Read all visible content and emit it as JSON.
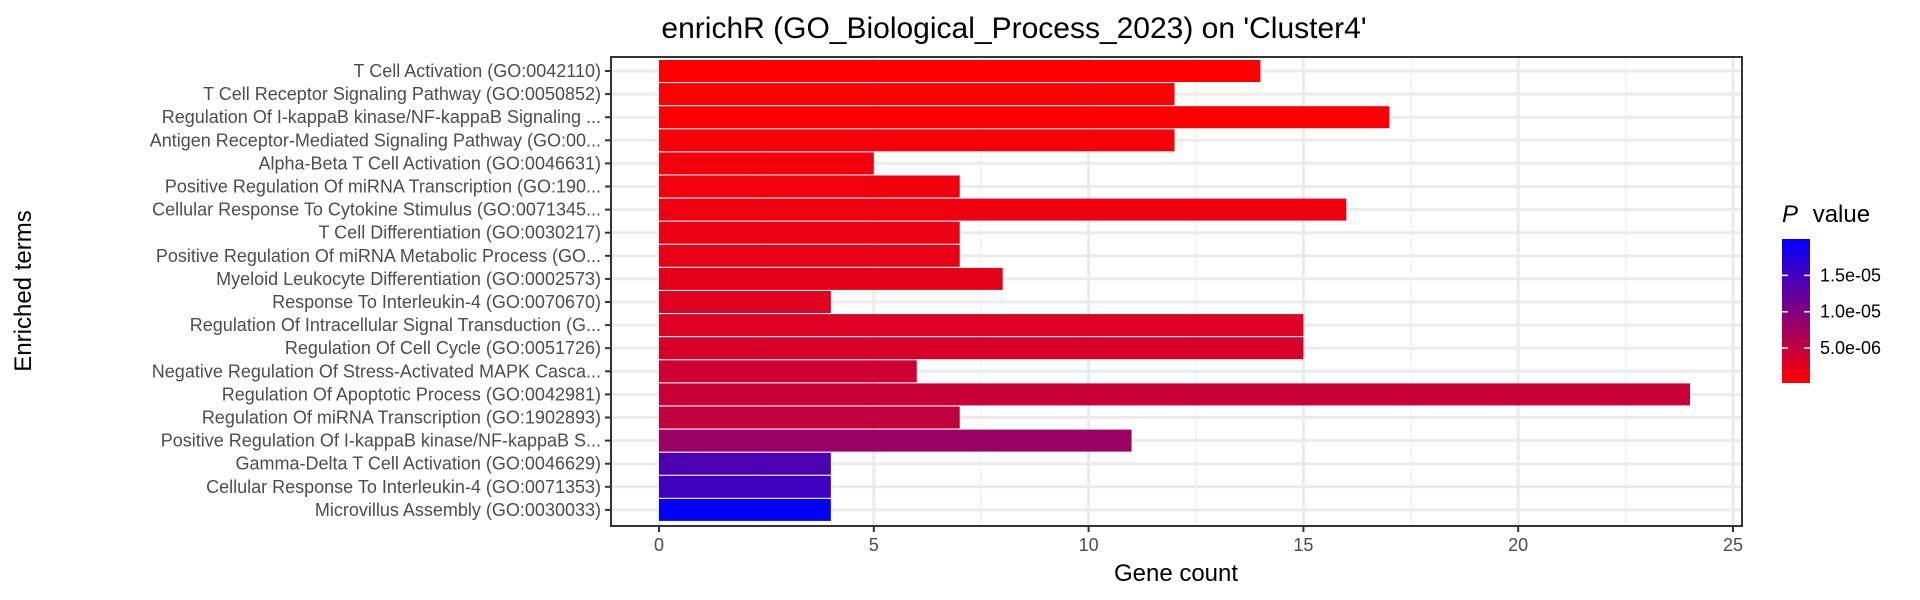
{
  "chart_data": {
    "type": "bar",
    "orientation": "horizontal",
    "title": "enrichR (GO_Biological_Process_2023) on 'Cluster4'",
    "xlabel": "Gene count",
    "ylabel": "Enriched terms",
    "xlim": [
      0,
      25
    ],
    "x_ticks": [
      0,
      5,
      10,
      15,
      20,
      25
    ],
    "grid": true,
    "categories": [
      "T Cell Activation (GO:0042110)",
      "T Cell Receptor Signaling Pathway (GO:0050852)",
      "Regulation Of I-kappaB kinase/NF-kappaB Signaling ...",
      "Antigen Receptor-Mediated Signaling Pathway (GO:00...",
      "Alpha-Beta T Cell Activation (GO:0046631)",
      "Positive Regulation Of miRNA Transcription (GO:190...",
      "Cellular Response To Cytokine Stimulus (GO:0071345...",
      "T Cell Differentiation (GO:0030217)",
      "Positive Regulation Of miRNA Metabolic Process (GO...",
      "Myeloid Leukocyte Differentiation (GO:0002573)",
      "Response To Interleukin-4 (GO:0070670)",
      "Regulation Of Intracellular Signal Transduction (G...",
      "Regulation Of Cell Cycle (GO:0051726)",
      "Negative Regulation Of Stress-Activated MAPK Casca...",
      "Regulation Of Apoptotic Process (GO:0042981)",
      "Regulation Of miRNA Transcription (GO:1902893)",
      "Positive Regulation Of I-kappaB kinase/NF-kappaB S...",
      "Gamma-Delta T Cell Activation (GO:0046629)",
      "Cellular Response To Interleukin-4 (GO:0071353)",
      "Microvillus Assembly (GO:0030033)"
    ],
    "values": [
      14,
      12,
      17,
      12,
      5,
      7,
      16,
      7,
      7,
      8,
      4,
      15,
      15,
      6,
      24,
      7,
      11,
      4,
      4,
      4
    ],
    "p_values": [
      2e-07,
      4e-07,
      6e-07,
      8e-07,
      1.1e-06,
      1.3e-06,
      1.5e-06,
      1.7e-06,
      1.9e-06,
      2.2e-06,
      2.6e-06,
      3e-06,
      3.3e-06,
      4e-06,
      4.5e-06,
      5e-06,
      8e-06,
      1.4e-05,
      1.5e-05,
      2e-05
    ],
    "legend": {
      "title_italic": "P",
      "title_rest": "value",
      "placement": "right",
      "tick_values": [
        5e-06,
        1e-05,
        1.5e-05
      ],
      "tick_labels": [
        "5.0e-06",
        "1.0e-05",
        "1.5e-05"
      ],
      "range": [
        2e-07,
        2e-05
      ],
      "low_color": "#ff0000",
      "high_color": "#0000ff"
    }
  }
}
